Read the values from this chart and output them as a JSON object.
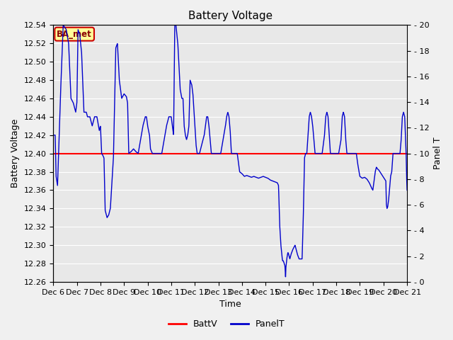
{
  "title": "Battery Voltage",
  "xlabel": "Time",
  "ylabel_left": "Battery Voltage",
  "ylabel_right": "Panel T",
  "ylim_left": [
    12.26,
    12.54
  ],
  "ylim_right": [
    0,
    20
  ],
  "yticks_left": [
    12.26,
    12.28,
    12.3,
    12.32,
    12.34,
    12.36,
    12.38,
    12.4,
    12.42,
    12.44,
    12.46,
    12.48,
    12.5,
    12.52,
    12.54
  ],
  "yticks_right": [
    0,
    2,
    4,
    6,
    8,
    10,
    12,
    14,
    16,
    18,
    20
  ],
  "batt_v": 12.4,
  "batt_color": "#ff0000",
  "panel_color": "#0000cc",
  "bg_color": "#e8e8e8",
  "plot_bg_color": "#e8e8e8",
  "annotation_text": "BA_met",
  "annotation_bg": "#ffff99",
  "annotation_border": "#cc0000",
  "legend_batt_label": "BattV",
  "legend_panel_label": "PanelT",
  "title_fontsize": 11,
  "axis_label_fontsize": 9,
  "tick_fontsize": 8,
  "xtick_labels": [
    "Dec 6",
    "Dec 7",
    "Dec 8",
    "Dec 9",
    "Dec 10",
    "Dec 11",
    "Dec 12",
    "Dec 13",
    "Dec 14",
    "Dec 15",
    "Dec 16",
    "Dec 17",
    "Dec 18",
    "Dec 19",
    "Dec 20",
    "Dec 21"
  ],
  "ctrl_points": [
    [
      0.0,
      12.42
    ],
    [
      0.08,
      12.42
    ],
    [
      0.12,
      12.375
    ],
    [
      0.18,
      12.365
    ],
    [
      0.3,
      12.46
    ],
    [
      0.42,
      12.54
    ],
    [
      0.55,
      12.535
    ],
    [
      0.65,
      12.52
    ],
    [
      0.75,
      12.46
    ],
    [
      0.85,
      12.455
    ],
    [
      0.9,
      12.45
    ],
    [
      0.95,
      12.445
    ],
    [
      1.0,
      12.455
    ],
    [
      1.05,
      12.535
    ],
    [
      1.12,
      12.53
    ],
    [
      1.2,
      12.51
    ],
    [
      1.3,
      12.445
    ],
    [
      1.4,
      12.445
    ],
    [
      1.45,
      12.44
    ],
    [
      1.55,
      12.44
    ],
    [
      1.65,
      12.43
    ],
    [
      1.75,
      12.44
    ],
    [
      1.85,
      12.44
    ],
    [
      1.95,
      12.425
    ],
    [
      2.0,
      12.43
    ],
    [
      2.05,
      12.4
    ],
    [
      2.1,
      12.398
    ],
    [
      2.15,
      12.395
    ],
    [
      2.2,
      12.338
    ],
    [
      2.28,
      12.33
    ],
    [
      2.35,
      12.333
    ],
    [
      2.42,
      12.34
    ],
    [
      2.55,
      12.395
    ],
    [
      2.65,
      12.515
    ],
    [
      2.72,
      12.52
    ],
    [
      2.8,
      12.48
    ],
    [
      2.9,
      12.46
    ],
    [
      3.0,
      12.465
    ],
    [
      3.1,
      12.462
    ],
    [
      3.15,
      12.455
    ],
    [
      3.2,
      12.4
    ],
    [
      3.3,
      12.402
    ],
    [
      3.4,
      12.405
    ],
    [
      3.5,
      12.402
    ],
    [
      3.6,
      12.4
    ],
    [
      3.7,
      12.415
    ],
    [
      3.8,
      12.43
    ],
    [
      3.9,
      12.44
    ],
    [
      3.95,
      12.44
    ],
    [
      4.0,
      12.43
    ],
    [
      4.08,
      12.42
    ],
    [
      4.12,
      12.405
    ],
    [
      4.2,
      12.4
    ],
    [
      4.3,
      12.4
    ],
    [
      4.4,
      12.4
    ],
    [
      4.5,
      12.4
    ],
    [
      4.6,
      12.4
    ],
    [
      4.7,
      12.415
    ],
    [
      4.8,
      12.43
    ],
    [
      4.9,
      12.44
    ],
    [
      5.0,
      12.44
    ],
    [
      5.05,
      12.43
    ],
    [
      5.1,
      12.42
    ],
    [
      5.15,
      12.54
    ],
    [
      5.2,
      12.54
    ],
    [
      5.28,
      12.52
    ],
    [
      5.38,
      12.47
    ],
    [
      5.45,
      12.46
    ],
    [
      5.5,
      12.46
    ],
    [
      5.55,
      12.43
    ],
    [
      5.6,
      12.42
    ],
    [
      5.65,
      12.415
    ],
    [
      5.7,
      12.42
    ],
    [
      5.75,
      12.43
    ],
    [
      5.8,
      12.48
    ],
    [
      5.87,
      12.475
    ],
    [
      5.92,
      12.465
    ],
    [
      5.98,
      12.44
    ],
    [
      6.05,
      12.41
    ],
    [
      6.1,
      12.4
    ],
    [
      6.15,
      12.4
    ],
    [
      6.2,
      12.4
    ],
    [
      6.3,
      12.41
    ],
    [
      6.4,
      12.42
    ],
    [
      6.45,
      12.43
    ],
    [
      6.5,
      12.44
    ],
    [
      6.55,
      12.44
    ],
    [
      6.6,
      12.43
    ],
    [
      6.65,
      12.415
    ],
    [
      6.7,
      12.4
    ],
    [
      6.75,
      12.4
    ],
    [
      6.8,
      12.4
    ],
    [
      6.9,
      12.4
    ],
    [
      7.0,
      12.4
    ],
    [
      7.1,
      12.4
    ],
    [
      7.2,
      12.415
    ],
    [
      7.3,
      12.43
    ],
    [
      7.35,
      12.44
    ],
    [
      7.4,
      12.445
    ],
    [
      7.45,
      12.44
    ],
    [
      7.5,
      12.425
    ],
    [
      7.55,
      12.4
    ],
    [
      7.6,
      12.4
    ],
    [
      7.7,
      12.4
    ],
    [
      7.8,
      12.4
    ],
    [
      7.9,
      12.38
    ],
    [
      8.0,
      12.378
    ],
    [
      8.1,
      12.375
    ],
    [
      8.2,
      12.376
    ],
    [
      8.3,
      12.375
    ],
    [
      8.4,
      12.374
    ],
    [
      8.5,
      12.375
    ],
    [
      8.6,
      12.374
    ],
    [
      8.7,
      12.373
    ],
    [
      8.8,
      12.374
    ],
    [
      8.9,
      12.375
    ],
    [
      9.0,
      12.374
    ],
    [
      9.1,
      12.373
    ],
    [
      9.2,
      12.371
    ],
    [
      9.3,
      12.37
    ],
    [
      9.4,
      12.369
    ],
    [
      9.5,
      12.368
    ],
    [
      9.55,
      12.365
    ],
    [
      9.6,
      12.322
    ],
    [
      9.65,
      12.3
    ],
    [
      9.68,
      12.293
    ],
    [
      9.7,
      12.287
    ],
    [
      9.72,
      12.283
    ],
    [
      9.75,
      12.283
    ],
    [
      9.78,
      12.281
    ],
    [
      9.8,
      12.279
    ],
    [
      9.82,
      12.278
    ],
    [
      9.83,
      12.274
    ],
    [
      9.84,
      12.268
    ],
    [
      9.85,
      12.265
    ],
    [
      9.86,
      12.275
    ],
    [
      9.88,
      12.28
    ],
    [
      9.9,
      12.285
    ],
    [
      9.93,
      12.29
    ],
    [
      9.95,
      12.292
    ],
    [
      9.97,
      12.291
    ],
    [
      9.99,
      12.289
    ],
    [
      10.01,
      12.287
    ],
    [
      10.03,
      12.285
    ],
    [
      10.05,
      12.287
    ],
    [
      10.08,
      12.29
    ],
    [
      10.15,
      12.295
    ],
    [
      10.25,
      12.3
    ],
    [
      10.35,
      12.29
    ],
    [
      10.42,
      12.285
    ],
    [
      10.45,
      12.285
    ],
    [
      10.5,
      12.285
    ],
    [
      10.55,
      12.285
    ],
    [
      10.6,
      12.33
    ],
    [
      10.65,
      12.395
    ],
    [
      10.7,
      12.4
    ],
    [
      10.75,
      12.4
    ],
    [
      10.8,
      12.42
    ],
    [
      10.85,
      12.44
    ],
    [
      10.9,
      12.445
    ],
    [
      10.95,
      12.44
    ],
    [
      11.0,
      12.43
    ],
    [
      11.05,
      12.415
    ],
    [
      11.1,
      12.4
    ],
    [
      11.2,
      12.4
    ],
    [
      11.3,
      12.4
    ],
    [
      11.4,
      12.4
    ],
    [
      11.5,
      12.42
    ],
    [
      11.55,
      12.44
    ],
    [
      11.6,
      12.445
    ],
    [
      11.65,
      12.44
    ],
    [
      11.7,
      12.42
    ],
    [
      11.75,
      12.4
    ],
    [
      11.8,
      12.4
    ],
    [
      11.9,
      12.4
    ],
    [
      12.0,
      12.4
    ],
    [
      12.1,
      12.4
    ],
    [
      12.2,
      12.415
    ],
    [
      12.25,
      12.44
    ],
    [
      12.3,
      12.445
    ],
    [
      12.35,
      12.44
    ],
    [
      12.4,
      12.415
    ],
    [
      12.45,
      12.4
    ],
    [
      12.5,
      12.4
    ],
    [
      12.6,
      12.4
    ],
    [
      12.7,
      12.4
    ],
    [
      12.8,
      12.4
    ],
    [
      12.85,
      12.4
    ],
    [
      12.9,
      12.39
    ],
    [
      12.95,
      12.382
    ],
    [
      13.0,
      12.375
    ],
    [
      13.05,
      12.374
    ],
    [
      13.1,
      12.373
    ],
    [
      13.2,
      12.374
    ],
    [
      13.3,
      12.372
    ],
    [
      13.35,
      12.37
    ],
    [
      13.4,
      12.368
    ],
    [
      13.45,
      12.365
    ],
    [
      13.5,
      12.362
    ],
    [
      13.55,
      12.36
    ],
    [
      13.6,
      12.37
    ],
    [
      13.65,
      12.38
    ],
    [
      13.7,
      12.385
    ],
    [
      13.75,
      12.383
    ],
    [
      13.8,
      12.382
    ],
    [
      13.85,
      12.38
    ],
    [
      13.9,
      12.378
    ],
    [
      13.95,
      12.376
    ],
    [
      14.0,
      12.374
    ],
    [
      14.05,
      12.372
    ],
    [
      14.1,
      12.37
    ],
    [
      14.12,
      12.345
    ],
    [
      14.15,
      12.34
    ],
    [
      14.18,
      12.342
    ],
    [
      14.22,
      12.35
    ],
    [
      14.3,
      12.375
    ],
    [
      14.35,
      12.38
    ],
    [
      14.4,
      12.4
    ],
    [
      14.45,
      12.4
    ],
    [
      14.5,
      12.4
    ],
    [
      14.55,
      12.4
    ],
    [
      14.6,
      12.4
    ],
    [
      14.65,
      12.4
    ],
    [
      14.7,
      12.4
    ],
    [
      14.75,
      12.415
    ],
    [
      14.8,
      12.44
    ],
    [
      14.85,
      12.445
    ],
    [
      14.9,
      12.44
    ],
    [
      14.93,
      12.42
    ],
    [
      14.96,
      12.4
    ],
    [
      14.98,
      12.375
    ],
    [
      15.0,
      12.36
    ]
  ]
}
